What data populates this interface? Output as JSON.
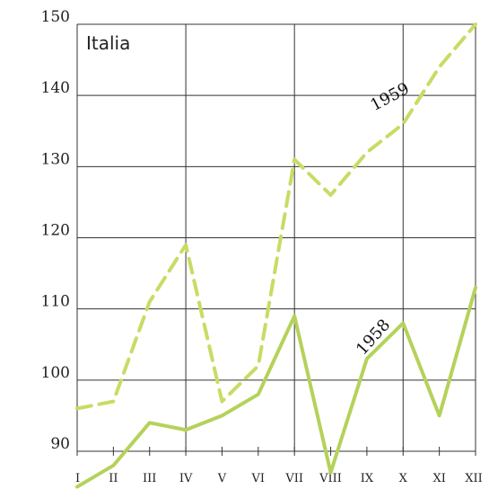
{
  "chart_data": {
    "type": "line",
    "title": "Italia",
    "categories": [
      "I",
      "II",
      "III",
      "IV",
      "V",
      "VI",
      "VII",
      "VIII",
      "IX",
      "X",
      "XI",
      "XII"
    ],
    "ylim": [
      90,
      150
    ],
    "yticks": [
      90,
      100,
      110,
      120,
      130,
      140,
      150
    ],
    "grid": true,
    "series": [
      {
        "name": "1959",
        "style": "dashed",
        "color": "#c8dc64",
        "values": [
          96,
          97,
          111,
          119,
          97,
          102,
          131,
          126,
          132,
          136,
          144,
          150
        ]
      },
      {
        "name": "1958",
        "style": "solid",
        "color": "#b4d25a",
        "values": [
          85,
          88,
          94,
          93,
          95,
          98,
          109,
          87,
          103,
          108,
          95,
          113
        ]
      }
    ]
  }
}
